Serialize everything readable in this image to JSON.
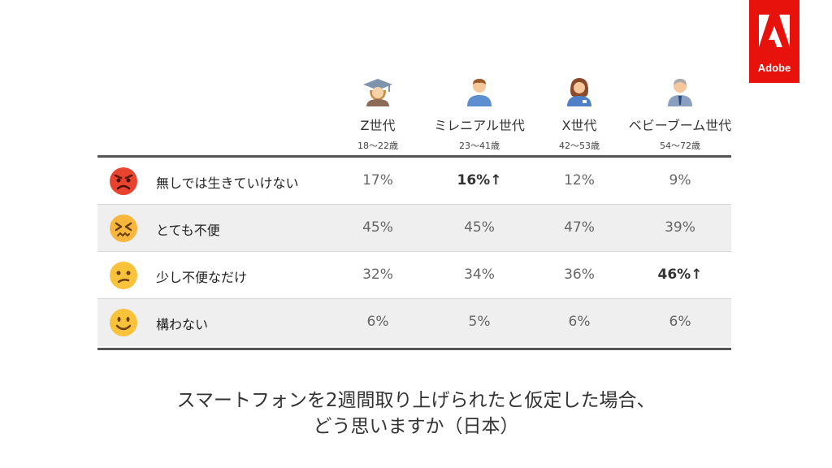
{
  "brand": {
    "name": "Adobe",
    "color": "#e8120c"
  },
  "generations": [
    {
      "name": "Z世代",
      "age": "18〜22歳",
      "icon": "student-avatar-icon"
    },
    {
      "name": "ミレニアル世代",
      "age": "23〜41歳",
      "icon": "man-avatar-icon"
    },
    {
      "name": "X世代",
      "age": "42〜53歳",
      "icon": "woman-avatar-icon"
    },
    {
      "name": "ベビーブーム世代",
      "age": "54〜72歳",
      "icon": "older-man-avatar-icon"
    }
  ],
  "rows": [
    {
      "label": "無しでは生きていけない",
      "icon": "pouting-face-icon",
      "values": [
        "17%",
        "16%",
        "12%",
        "9%"
      ],
      "highlight": [
        false,
        true,
        false,
        false
      ]
    },
    {
      "label": "とても不便",
      "icon": "persevering-face-icon",
      "values": [
        "45%",
        "45%",
        "47%",
        "39%"
      ],
      "highlight": [
        false,
        false,
        false,
        false
      ]
    },
    {
      "label": "少し不便なだけ",
      "icon": "confused-face-icon",
      "values": [
        "32%",
        "34%",
        "36%",
        "46%"
      ],
      "highlight": [
        false,
        false,
        false,
        true
      ]
    },
    {
      "label": "構わない",
      "icon": "smiling-face-icon",
      "values": [
        "6%",
        "5%",
        "6%",
        "6%"
      ],
      "highlight": [
        false,
        false,
        false,
        false
      ]
    }
  ],
  "highlight_marker": "↑",
  "caption": {
    "line1": "スマートフォンを2週間取り上げられたと仮定した場合、",
    "line2": "どう思いますか（日本）"
  },
  "chart_data": {
    "type": "table",
    "title": "スマートフォンを2週間取り上げられたと仮定した場合、どう思いますか（日本）",
    "columns": [
      "Z世代",
      "ミレニアル世代",
      "X世代",
      "ベビーブーム世代"
    ],
    "column_subtitles": [
      "18〜22歳",
      "23〜41歳",
      "42〜53歳",
      "54〜72歳"
    ],
    "categories": [
      "無しでは生きていけない",
      "とても不便",
      "少し不便なだけ",
      "構わない"
    ],
    "series": [
      {
        "name": "Z世代",
        "values": [
          17,
          45,
          32,
          6
        ]
      },
      {
        "name": "ミレニアル世代",
        "values": [
          16,
          45,
          34,
          5
        ]
      },
      {
        "name": "X世代",
        "values": [
          12,
          47,
          36,
          6
        ]
      },
      {
        "name": "ベビーブーム世代",
        "values": [
          9,
          39,
          46,
          6
        ]
      }
    ],
    "unit": "%",
    "highlighted": [
      {
        "category": "無しでは生きていけない",
        "series": "ミレニアル世代"
      },
      {
        "category": "少し不便なだけ",
        "series": "ベビーブーム世代"
      }
    ]
  }
}
